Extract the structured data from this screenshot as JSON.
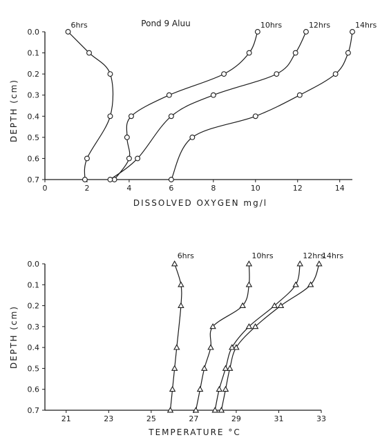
{
  "chart_data": [
    {
      "type": "line",
      "title": "Pond 9 Aluu",
      "xlabel": "DISSOLVED OXYGEN  mg/l",
      "ylabel": "DEPTH (cm)",
      "xlim": [
        0,
        14.6
      ],
      "ylim": [
        0.0,
        0.7
      ],
      "y_inverted": true,
      "grid": false,
      "marker": "circle",
      "xticks": [
        0,
        2,
        4,
        6,
        8,
        10,
        12,
        14
      ],
      "yticks": [
        0.0,
        0.1,
        0.2,
        0.3,
        0.4,
        0.5,
        0.6,
        0.7
      ],
      "series": [
        {
          "name": "6hrs",
          "x": [
            1.1,
            2.1,
            3.1,
            3.1,
            2.0,
            1.9
          ],
          "y": [
            0.0,
            0.1,
            0.2,
            0.4,
            0.6,
            0.7
          ]
        },
        {
          "name": "10hrs",
          "x": [
            10.1,
            9.7,
            8.5,
            5.9,
            4.1,
            3.9,
            4.0,
            3.3
          ],
          "y": [
            0.0,
            0.1,
            0.2,
            0.3,
            0.4,
            0.5,
            0.6,
            0.7
          ]
        },
        {
          "name": "12hrs",
          "x": [
            12.4,
            11.9,
            11.0,
            8.0,
            6.0,
            4.4,
            3.1
          ],
          "y": [
            0.0,
            0.1,
            0.2,
            0.3,
            0.4,
            0.6,
            0.7
          ]
        },
        {
          "name": "14hrs",
          "x": [
            14.6,
            14.4,
            13.8,
            12.1,
            10.0,
            7.0,
            6.0
          ],
          "y": [
            0.0,
            0.1,
            0.2,
            0.3,
            0.4,
            0.5,
            0.7
          ]
        }
      ]
    },
    {
      "type": "line",
      "title": "",
      "xlabel": "TEMPERATURE  °C",
      "ylabel": "DEPTH (cm)",
      "xlim": [
        20,
        33
      ],
      "ylim": [
        0.0,
        0.7
      ],
      "y_inverted": true,
      "grid": false,
      "marker": "triangle",
      "xticks": [
        21,
        23,
        25,
        27,
        29,
        31,
        33
      ],
      "yticks": [
        0.0,
        0.1,
        0.2,
        0.3,
        0.4,
        0.5,
        0.6,
        0.7
      ],
      "series": [
        {
          "name": "6hrs",
          "x": [
            26.1,
            26.4,
            26.4,
            26.2,
            26.1,
            26.0,
            25.9
          ],
          "y": [
            0.0,
            0.1,
            0.2,
            0.4,
            0.5,
            0.6,
            0.7
          ]
        },
        {
          "name": "10hrs",
          "x": [
            29.6,
            29.6,
            29.3,
            27.9,
            27.8,
            27.5,
            27.3,
            27.1
          ],
          "y": [
            0.0,
            0.1,
            0.2,
            0.3,
            0.4,
            0.5,
            0.6,
            0.7
          ]
        },
        {
          "name": "12hrs",
          "x": [
            32.0,
            31.8,
            30.8,
            29.6,
            28.8,
            28.5,
            28.2,
            28.0
          ],
          "y": [
            0.0,
            0.1,
            0.2,
            0.3,
            0.4,
            0.5,
            0.6,
            0.7
          ]
        },
        {
          "name": "14hrs",
          "x": [
            32.9,
            32.5,
            31.1,
            29.9,
            29.0,
            28.7,
            28.5,
            28.3
          ],
          "y": [
            0.0,
            0.1,
            0.2,
            0.3,
            0.4,
            0.5,
            0.6,
            0.7
          ]
        }
      ]
    }
  ]
}
